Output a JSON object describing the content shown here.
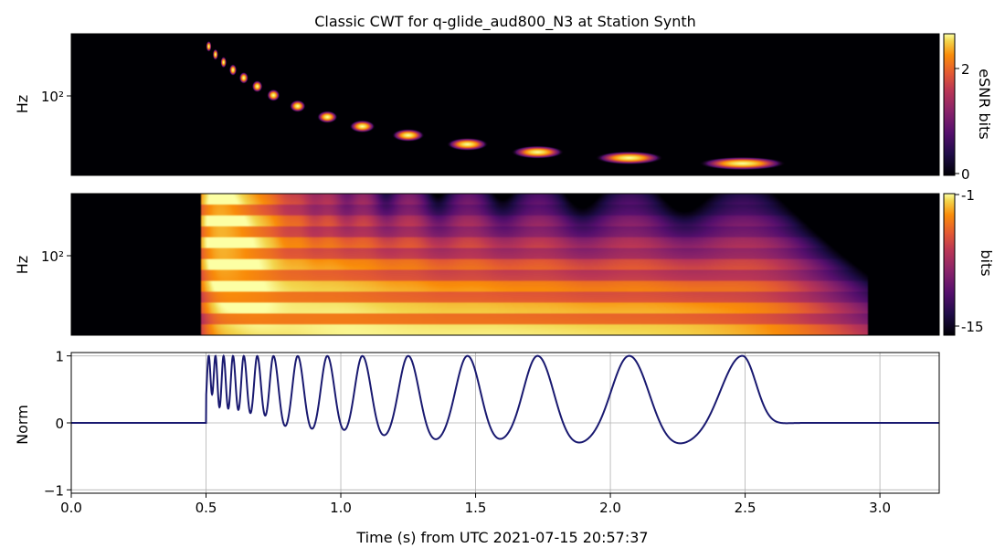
{
  "figure": {
    "title": "Classic CWT for q-glide_aud800_N3 at Station Synth",
    "xlabel": "Time (s) from UTC 2021-07-15 20:57:37"
  },
  "chart_data": [
    {
      "type": "heatmap",
      "panel": "cwt-esnr",
      "ylabel": "Hz",
      "y_tick_label": "10²",
      "y_tick_value": 100,
      "yscale": "log",
      "colorbar": {
        "label": "eSNR bits",
        "ticks": [
          "0",
          "2"
        ],
        "tick_values": [
          0,
          2
        ],
        "range": [
          0,
          2.5
        ],
        "colormap": "inferno"
      },
      "pulses": [
        {
          "t": 0.51,
          "f": 245,
          "dt": 0.006
        },
        {
          "t": 0.535,
          "f": 215,
          "dt": 0.007
        },
        {
          "t": 0.565,
          "f": 190,
          "dt": 0.008
        },
        {
          "t": 0.6,
          "f": 168,
          "dt": 0.01
        },
        {
          "t": 0.64,
          "f": 148,
          "dt": 0.012
        },
        {
          "t": 0.69,
          "f": 129,
          "dt": 0.014
        },
        {
          "t": 0.75,
          "f": 112,
          "dt": 0.017
        },
        {
          "t": 0.84,
          "f": 94,
          "dt": 0.021
        },
        {
          "t": 0.95,
          "f": 79,
          "dt": 0.027
        },
        {
          "t": 1.08,
          "f": 68,
          "dt": 0.034
        },
        {
          "t": 1.25,
          "f": 59,
          "dt": 0.043
        },
        {
          "t": 1.47,
          "f": 51,
          "dt": 0.055
        },
        {
          "t": 1.73,
          "f": 45,
          "dt": 0.07
        },
        {
          "t": 2.07,
          "f": 41,
          "dt": 0.09
        },
        {
          "t": 2.49,
          "f": 37.5,
          "dt": 0.115
        }
      ]
    },
    {
      "type": "heatmap",
      "panel": "cwt-power",
      "ylabel": "Hz",
      "y_tick_label": "10²",
      "y_tick_value": 100,
      "yscale": "log",
      "colorbar": {
        "label": "bits",
        "ticks": [
          "-1",
          "-15"
        ],
        "tick_values": [
          -1,
          -15
        ],
        "range": [
          -16,
          -1
        ],
        "colormap": "inferno"
      }
    },
    {
      "type": "line",
      "panel": "waveform",
      "ylabel": "Norm",
      "ylim": [
        -1.05,
        1.05
      ],
      "yticks": [
        "−1",
        "0",
        "1"
      ],
      "ytick_values": [
        -1,
        0,
        1
      ],
      "xlim": [
        0,
        3.22
      ],
      "xticks": [
        "0.0",
        "0.5",
        "1.0",
        "1.5",
        "2.0",
        "2.5",
        "3.0"
      ],
      "xtick_values": [
        0,
        0.5,
        1.0,
        1.5,
        2.0,
        2.5,
        3.0
      ],
      "grid": true,
      "series": [
        {
          "signal": "quantized frequency glide",
          "t_start": 0.5,
          "t_end": 2.72,
          "amplitude": 1,
          "color": "#191970"
        }
      ]
    }
  ],
  "colors": {
    "waveform": "#191970",
    "grid": "#b0b0b0",
    "axes": "#000000",
    "background": "#000004"
  }
}
